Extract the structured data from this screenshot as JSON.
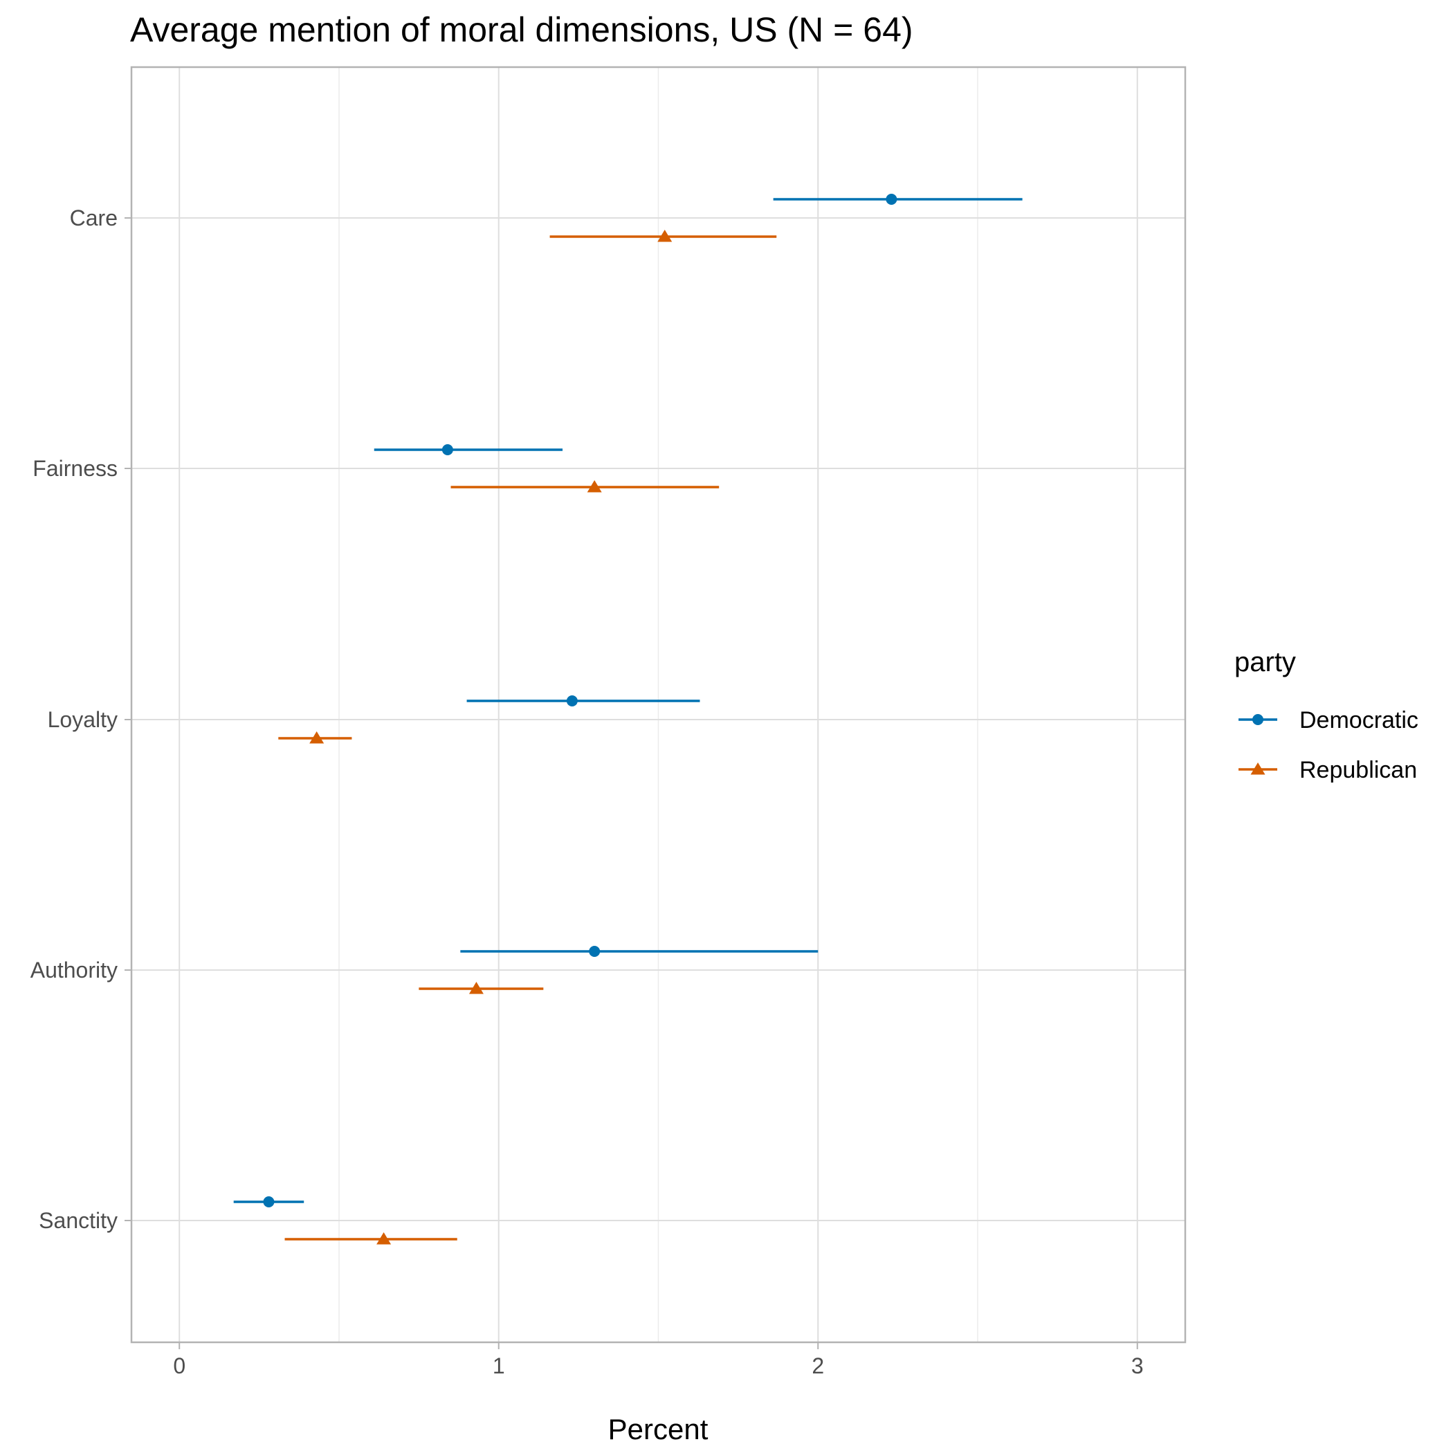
{
  "chart_data": {
    "type": "scatter",
    "title": "Average mention of moral dimensions, US (N = 64)",
    "xlabel": "Percent",
    "ylabel": "",
    "xlim": [
      -0.15,
      3.15
    ],
    "x_ticks": [
      "0",
      "1",
      "2",
      "3"
    ],
    "categories": [
      "Care",
      "Fairness",
      "Loyalty",
      "Authority",
      "Sanctity"
    ],
    "legend_title": "party",
    "legend_position": "right",
    "grid": true,
    "series": [
      {
        "name": "Democratic",
        "color": "#0072B2",
        "marker": "circle",
        "points": [
          {
            "category": "Care",
            "x": 2.23,
            "lower": 1.86,
            "upper": 2.64
          },
          {
            "category": "Fairness",
            "x": 0.84,
            "lower": 0.61,
            "upper": 1.2
          },
          {
            "category": "Loyalty",
            "x": 1.23,
            "lower": 0.9,
            "upper": 1.63
          },
          {
            "category": "Authority",
            "x": 1.3,
            "lower": 0.88,
            "upper": 2.0
          },
          {
            "category": "Sanctity",
            "x": 0.28,
            "lower": 0.17,
            "upper": 0.39
          }
        ]
      },
      {
        "name": "Republican",
        "color": "#D55E00",
        "marker": "triangle",
        "points": [
          {
            "category": "Care",
            "x": 1.52,
            "lower": 1.16,
            "upper": 1.87
          },
          {
            "category": "Fairness",
            "x": 1.3,
            "lower": 0.85,
            "upper": 1.69
          },
          {
            "category": "Loyalty",
            "x": 0.43,
            "lower": 0.31,
            "upper": 0.54
          },
          {
            "category": "Authority",
            "x": 0.93,
            "lower": 0.75,
            "upper": 1.14
          },
          {
            "category": "Sanctity",
            "x": 0.64,
            "lower": 0.33,
            "upper": 0.87
          }
        ]
      }
    ]
  }
}
